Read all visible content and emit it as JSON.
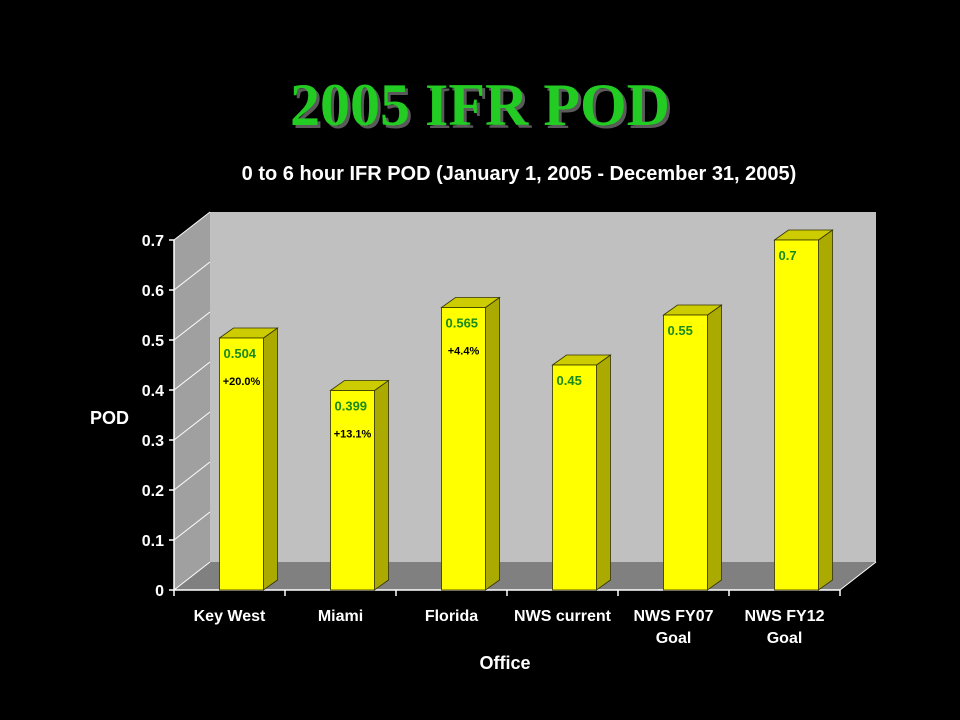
{
  "slide": {
    "title": "2005 IFR POD"
  },
  "colors": {
    "background": "#000000",
    "title_green": "#22cc22",
    "bar_front": "#ffff00",
    "bar_side": "#aaaa00",
    "bar_top": "#cccc00",
    "value_label": "#1a8a1a",
    "back_wall": "#c0c0c0",
    "floor": "#808080"
  },
  "chart_data": {
    "type": "bar",
    "title": "0 to 6 hour IFR POD (January 1, 2005 - December 31, 2005)",
    "xlabel": "Office",
    "ylabel": "POD",
    "ylim": [
      0,
      0.7
    ],
    "yticks": [
      "0",
      "0.1",
      "0.2",
      "0.3",
      "0.4",
      "0.5",
      "0.6",
      "0.7"
    ],
    "grid": false,
    "categories": [
      [
        "Key West"
      ],
      [
        "Miami"
      ],
      [
        "Florida"
      ],
      [
        "NWS current"
      ],
      [
        "NWS FY07",
        "Goal"
      ],
      [
        "NWS FY12",
        "Goal"
      ]
    ],
    "values": [
      0.504,
      0.399,
      0.565,
      0.45,
      0.55,
      0.7
    ],
    "value_labels": [
      "0.504",
      "0.399",
      "0.565",
      "0.45",
      "0.55",
      "0.7"
    ],
    "annotations": [
      "+20.0%",
      "+13.1%",
      "+4.4%",
      "",
      "",
      ""
    ]
  }
}
